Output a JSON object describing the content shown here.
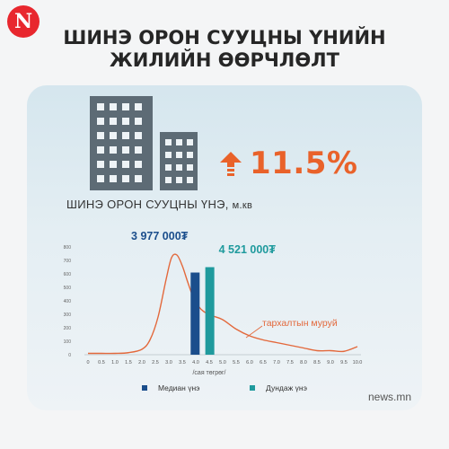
{
  "brand": {
    "logo_letter": "N",
    "source": "news.mn"
  },
  "headline": {
    "line1": "ШИНЭ ОРОН СУУЦНЫ ҮНИЙН",
    "line2": "ЖИЛИЙН ӨӨРЧЛӨЛТ"
  },
  "change": {
    "value": "11.5%",
    "direction": "up",
    "icon": "up-arrow-icon",
    "color": "#e9622a"
  },
  "chart_data": {
    "type": "bar",
    "title": "ШИНЭ ОРОН СУУЦНЫ ҮНЭ,",
    "title_unit": "м.кв",
    "xlabel": "/сая төгрөг/",
    "x_ticks": [
      0,
      0.5,
      1.0,
      1.5,
      2.0,
      2.5,
      3.0,
      3.5,
      4.0,
      4.5,
      5.0,
      5.5,
      6.0,
      6.5,
      7.0,
      7.5,
      8.0,
      8.5,
      9.0,
      9.5,
      10.0
    ],
    "x_tick_labels": [
      "0",
      "0.5",
      "1.0",
      "1.5",
      "2.0",
      "2.5",
      "3.0",
      "3.5",
      "4.0",
      "4.5",
      "5.0",
      "5.5",
      "6.0",
      "6.5",
      "7.0",
      "7.5",
      "8.0",
      "8.5",
      "9.0",
      "9.5",
      "10.0"
    ],
    "y_ticks": [
      0,
      100,
      200,
      300,
      400,
      500,
      600,
      700,
      800
    ],
    "y_tick_labels": [
      "0",
      "100",
      "200",
      "300",
      "400",
      "500",
      "600",
      "700",
      "800"
    ],
    "xlim": [
      0,
      10
    ],
    "ylim": [
      0,
      800
    ],
    "grid": false,
    "legend": {
      "position": "bottom"
    },
    "bars": [
      {
        "name": "Медиан үнэ",
        "x": 3.977,
        "value": 610,
        "label": "3 977 000₮",
        "color": "#1b4e8c"
      },
      {
        "name": "Дундаж үнэ",
        "x": 4.521,
        "value": 650,
        "label": "4 521 000₮",
        "color": "#1f9a9d"
      }
    ],
    "series": [
      {
        "name": "тархалтын муруй",
        "type": "line",
        "color": "#e3683b",
        "x": [
          0,
          0.5,
          1.0,
          1.5,
          2.0,
          2.3,
          2.6,
          2.9,
          3.1,
          3.3,
          3.5,
          3.7,
          3.9,
          4.1,
          4.3,
          4.6,
          5.0,
          5.5,
          6.0,
          6.5,
          7.0,
          7.5,
          8.0,
          8.5,
          9.0,
          9.5,
          10.0
        ],
        "values": [
          10,
          10,
          10,
          15,
          40,
          110,
          280,
          560,
          720,
          740,
          660,
          540,
          430,
          360,
          320,
          290,
          260,
          190,
          140,
          110,
          90,
          70,
          50,
          30,
          30,
          25,
          60
        ]
      }
    ],
    "annotations": [
      {
        "text": "тархалтын муруй",
        "color": "#e3683b"
      }
    ]
  }
}
